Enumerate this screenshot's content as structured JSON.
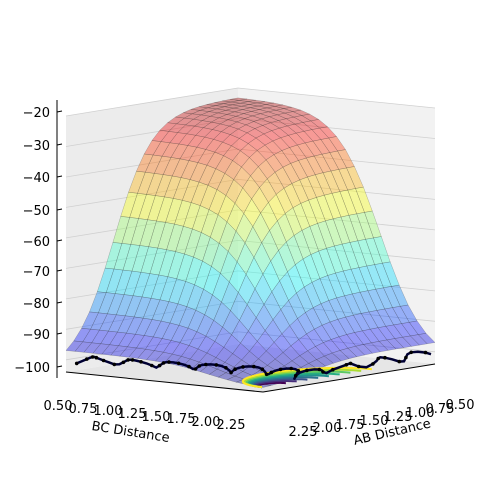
{
  "chart_data": {
    "type": "surface3d",
    "title": "",
    "xlabel": "AB Distance",
    "ylabel": "BC Distance",
    "zlabel": "",
    "x_ticks": [
      "0.50",
      "0.75",
      "1.00",
      "1.25",
      "1.50",
      "1.75",
      "2.00",
      "2.25"
    ],
    "y_ticks": [
      "0.50",
      "0.75",
      "1.00",
      "1.25",
      "1.50",
      "1.75",
      "2.00",
      "2.25"
    ],
    "z_ticks": [
      "−20",
      "−30",
      "−40",
      "−50",
      "−60",
      "−70",
      "−80",
      "−90",
      "−100"
    ],
    "xlim": [
      0.5,
      2.3
    ],
    "ylim": [
      0.5,
      2.3
    ],
    "zlim": [
      -104,
      -20
    ],
    "colormap": "jet",
    "contour_colormap": "viridis",
    "trajectory_color": "#000033",
    "panel_color": "#f2f2f2",
    "grid": true
  }
}
